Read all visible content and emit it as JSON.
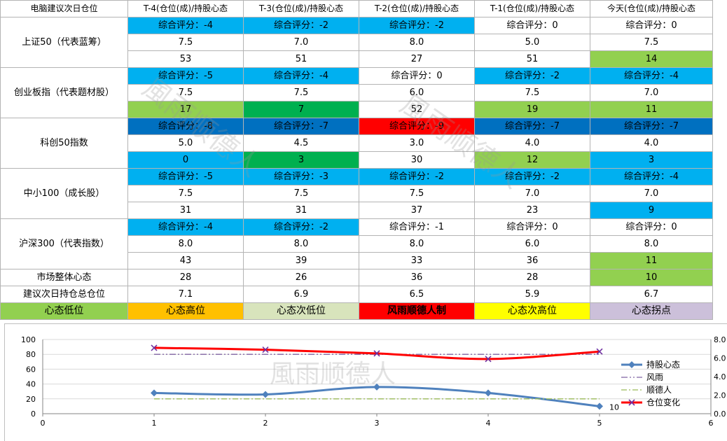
{
  "sheet": {
    "corner": "电脑建议次日仓位",
    "columns": [
      "T-4(仓位(成)/持股心态",
      "T-3(仓位(成)/持股心态",
      "T-2(仓位(成)/持股心态",
      "T-1(仓位(成)/持股心态",
      "今天(仓位(成)/持股心态"
    ],
    "indices": [
      {
        "name": "上证50（代表蓝筹）",
        "rows": [
          [
            {
              "t": "综合评分：-4",
              "c": "blue"
            },
            {
              "t": "综合评分：-2",
              "c": "blue"
            },
            {
              "t": "综合评分：-2",
              "c": "blue"
            },
            {
              "t": "综合评分：0",
              "c": "white"
            },
            {
              "t": "综合评分：0",
              "c": "white"
            }
          ],
          [
            {
              "t": "7.5",
              "c": "white"
            },
            {
              "t": "7.0",
              "c": "white"
            },
            {
              "t": "8.0",
              "c": "white"
            },
            {
              "t": "5.0",
              "c": "white"
            },
            {
              "t": "7.5",
              "c": "white"
            }
          ],
          [
            {
              "t": "53",
              "c": "white"
            },
            {
              "t": "51",
              "c": "white"
            },
            {
              "t": "27",
              "c": "white"
            },
            {
              "t": "51",
              "c": "white"
            },
            {
              "t": "14",
              "c": "lgreen"
            }
          ]
        ]
      },
      {
        "name": "创业板指（代表题材股）",
        "rows": [
          [
            {
              "t": "综合评分：-5",
              "c": "blue"
            },
            {
              "t": "综合评分：-4",
              "c": "blue"
            },
            {
              "t": "综合评分：0",
              "c": "white"
            },
            {
              "t": "综合评分：-2",
              "c": "blue"
            },
            {
              "t": "综合评分：-4",
              "c": "blue"
            }
          ],
          [
            {
              "t": "7.5",
              "c": "white"
            },
            {
              "t": "7.5",
              "c": "white"
            },
            {
              "t": "6.0",
              "c": "white"
            },
            {
              "t": "7.5",
              "c": "white"
            },
            {
              "t": "7.0",
              "c": "white"
            }
          ],
          [
            {
              "t": "17",
              "c": "lgreen"
            },
            {
              "t": "7",
              "c": "dgreen"
            },
            {
              "t": "52",
              "c": "white"
            },
            {
              "t": "19",
              "c": "lgreen"
            },
            {
              "t": "11",
              "c": "lgreen"
            }
          ]
        ]
      },
      {
        "name": "科创50指数",
        "rows": [
          [
            {
              "t": "综合评分：-8",
              "c": "dblue"
            },
            {
              "t": "综合评分：-7",
              "c": "dblue"
            },
            {
              "t": "综合评分：-9",
              "c": "red"
            },
            {
              "t": "综合评分：-7",
              "c": "dblue"
            },
            {
              "t": "综合评分：-7",
              "c": "dblue"
            }
          ],
          [
            {
              "t": "5.0",
              "c": "white"
            },
            {
              "t": "4.5",
              "c": "white"
            },
            {
              "t": "3.0",
              "c": "white"
            },
            {
              "t": "4.0",
              "c": "white"
            },
            {
              "t": "4.0",
              "c": "white"
            }
          ],
          [
            {
              "t": "0",
              "c": "blue"
            },
            {
              "t": "3",
              "c": "dgreen"
            },
            {
              "t": "30",
              "c": "white"
            },
            {
              "t": "12",
              "c": "lgreen"
            },
            {
              "t": "3",
              "c": "blue"
            }
          ]
        ]
      },
      {
        "name": "中小100（成长股）",
        "rows": [
          [
            {
              "t": "综合评分：-5",
              "c": "blue"
            },
            {
              "t": "综合评分：-3",
              "c": "blue"
            },
            {
              "t": "综合评分：-2",
              "c": "blue"
            },
            {
              "t": "综合评分：-2",
              "c": "blue"
            },
            {
              "t": "综合评分：-4",
              "c": "blue"
            }
          ],
          [
            {
              "t": "7.5",
              "c": "white"
            },
            {
              "t": "7.5",
              "c": "white"
            },
            {
              "t": "7.5",
              "c": "white"
            },
            {
              "t": "7.0",
              "c": "white"
            },
            {
              "t": "7.0",
              "c": "white"
            }
          ],
          [
            {
              "t": "31",
              "c": "white"
            },
            {
              "t": "31",
              "c": "white"
            },
            {
              "t": "37",
              "c": "white"
            },
            {
              "t": "23",
              "c": "white"
            },
            {
              "t": "9",
              "c": "blue"
            }
          ]
        ]
      },
      {
        "name": "沪深300（代表指数）",
        "rows": [
          [
            {
              "t": "综合评分：-4",
              "c": "blue"
            },
            {
              "t": "综合评分：-2",
              "c": "blue"
            },
            {
              "t": "综合评分：-1",
              "c": "white"
            },
            {
              "t": "综合评分：0",
              "c": "white"
            },
            {
              "t": "综合评分：0",
              "c": "white"
            }
          ],
          [
            {
              "t": "8.0",
              "c": "white"
            },
            {
              "t": "8.0",
              "c": "white"
            },
            {
              "t": "8.0",
              "c": "white"
            },
            {
              "t": "6.0",
              "c": "white"
            },
            {
              "t": "8.0",
              "c": "white"
            }
          ],
          [
            {
              "t": "43",
              "c": "white"
            },
            {
              "t": "39",
              "c": "white"
            },
            {
              "t": "33",
              "c": "white"
            },
            {
              "t": "36",
              "c": "white"
            },
            {
              "t": "11",
              "c": "lgreen"
            }
          ]
        ]
      }
    ],
    "summary": [
      {
        "name": "市场整体心态",
        "cells": [
          {
            "t": "28",
            "c": "white"
          },
          {
            "t": "26",
            "c": "white"
          },
          {
            "t": "36",
            "c": "white"
          },
          {
            "t": "28",
            "c": "white"
          },
          {
            "t": "10",
            "c": "lgreen"
          }
        ]
      },
      {
        "name": "建议次日持仓总仓位",
        "cells": [
          {
            "t": "7.1",
            "c": "white"
          },
          {
            "t": "6.9",
            "c": "white"
          },
          {
            "t": "6.5",
            "c": "white"
          },
          {
            "t": "5.9",
            "c": "white"
          },
          {
            "t": "6.7",
            "c": "white"
          }
        ]
      }
    ],
    "legend": [
      {
        "t": "心态低位",
        "c": "lgreen"
      },
      {
        "t": "心态高位",
        "c": "orange"
      },
      {
        "t": "心态次低位",
        "c": "sage"
      },
      {
        "t": "风雨顺德人制",
        "c": "red",
        "bold": true
      },
      {
        "t": "心态次高位",
        "c": "yellow"
      },
      {
        "t": "心态拐点",
        "c": "lav"
      }
    ]
  },
  "watermark": "風雨顺德人",
  "colors": {
    "blue": "#00b0f0",
    "dblue": "#0070c0",
    "lgreen": "#92d050",
    "dgreen": "#00b050",
    "red": "#ff0000",
    "orange": "#ffc000",
    "yellow": "#ffff00",
    "sage": "#d8e4bc",
    "lav": "#ccc0da",
    "white": "#ffffff"
  },
  "chart_data": {
    "type": "line",
    "x": [
      1,
      2,
      3,
      4,
      5
    ],
    "xlim": [
      0,
      6
    ],
    "xticks": [
      0,
      1,
      2,
      3,
      4,
      5,
      6
    ],
    "ylim": [
      0,
      100
    ],
    "yticks": [
      0,
      20,
      40,
      60,
      80,
      100
    ],
    "y2lim": [
      0,
      8
    ],
    "y2ticks": [
      "0.0",
      "2.0",
      "4.0",
      "6.0",
      "8.0"
    ],
    "grid": true,
    "legend_position": "right",
    "series": [
      {
        "name": "持股心态",
        "axis": "left",
        "values": [
          28,
          26,
          36,
          28,
          10
        ],
        "color": "#4f81bd",
        "marker": "diamond"
      },
      {
        "name": "风雨",
        "axis": "left",
        "values": [
          80,
          80,
          80,
          80,
          80
        ],
        "color": "#8064a2",
        "dash": "dashdotdot"
      },
      {
        "name": "顺德人",
        "axis": "left",
        "values": [
          20,
          20,
          20,
          20,
          20
        ],
        "color": "#9bbb59",
        "dash": "dashdot"
      },
      {
        "name": "仓位变化",
        "axis": "right",
        "values": [
          7.1,
          6.9,
          6.5,
          5.9,
          6.7
        ],
        "color": "#ff0000",
        "marker": "x"
      }
    ],
    "annotations": [
      {
        "x": 5,
        "series": "持股心态",
        "text": "10"
      }
    ]
  }
}
